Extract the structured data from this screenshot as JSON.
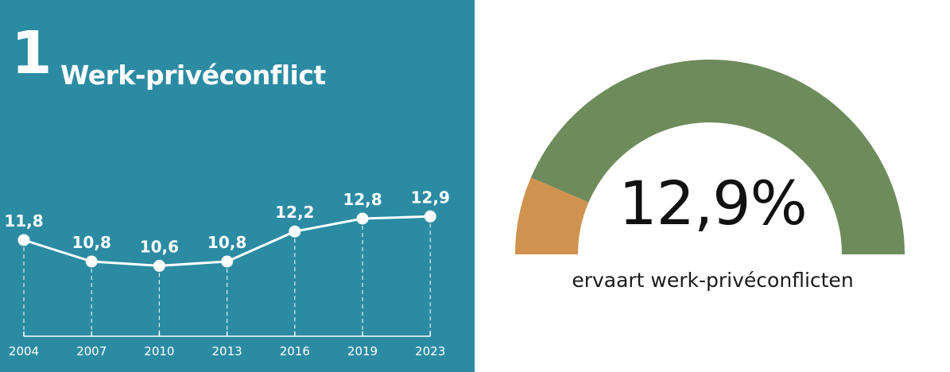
{
  "header": {
    "number": "1",
    "title": "Werk-privéconflict"
  },
  "chart_data": [
    {
      "type": "line",
      "x": [
        "2004",
        "2007",
        "2010",
        "2013",
        "2016",
        "2019",
        "2023"
      ],
      "values": [
        11.8,
        10.8,
        10.6,
        10.8,
        12.2,
        12.8,
        12.9
      ],
      "data_labels": [
        "11,8",
        "10,8",
        "10,6",
        "10,8",
        "12,2",
        "12,8",
        "12,9"
      ],
      "ylim": [
        8.0,
        14.3
      ],
      "grid": false,
      "colors": {
        "background": "#2b8ba3",
        "line": "#ffffff"
      }
    },
    {
      "type": "pie",
      "style": "half-donut gauge",
      "value_percent": 12.9,
      "value_label": "12,9%",
      "caption": "ervaart werk-privéconflicten",
      "colors": {
        "value": "#d0924f",
        "remainder": "#6d8b5b"
      }
    }
  ]
}
